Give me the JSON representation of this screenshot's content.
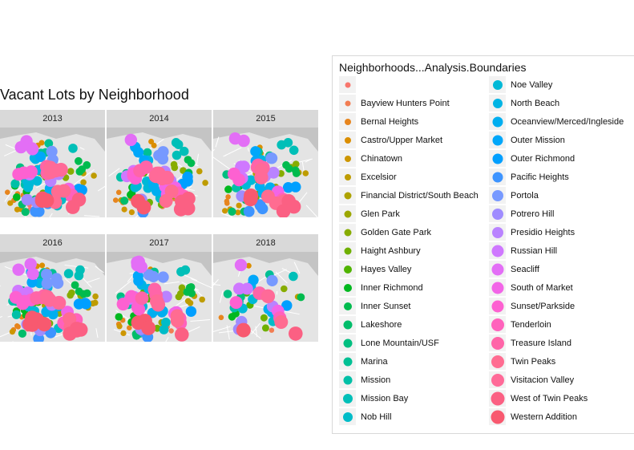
{
  "chart_data": {
    "type": "scatter",
    "title": "Vacant Lots by Neighborhood",
    "facets": [
      "2013",
      "2014",
      "2015",
      "2016",
      "2017",
      "2018"
    ],
    "legend": {
      "title": "Neighborhoods...Analysis.Boundaries",
      "placement": "right",
      "entries": [
        {
          "name": "",
          "color": "#F8766D"
        },
        {
          "name": "Bayview Hunters Point",
          "color": "#F27D52"
        },
        {
          "name": "Bernal Heights",
          "color": "#E7851E"
        },
        {
          "name": "Castro/Upper Market",
          "color": "#DB8E00"
        },
        {
          "name": "Chinatown",
          "color": "#CD9600"
        },
        {
          "name": "Excelsior",
          "color": "#BE9C00"
        },
        {
          "name": "Financial District/South Beach",
          "color": "#AEA200"
        },
        {
          "name": "Glen Park",
          "color": "#9CA700"
        },
        {
          "name": "Golden Gate Park",
          "color": "#87AC00"
        },
        {
          "name": "Haight Ashbury",
          "color": "#6FB000"
        },
        {
          "name": "Hayes Valley",
          "color": "#50B400"
        },
        {
          "name": "Inner Richmond",
          "color": "#00B81F"
        },
        {
          "name": "Inner Sunset",
          "color": "#00BB4E"
        },
        {
          "name": "Lakeshore",
          "color": "#00BD6A"
        },
        {
          "name": "Lone Mountain/USF",
          "color": "#00BF80"
        },
        {
          "name": "Marina",
          "color": "#00C094"
        },
        {
          "name": "Mission",
          "color": "#00C0A7"
        },
        {
          "name": "Mission Bay",
          "color": "#00BFB8"
        },
        {
          "name": "Nob Hill",
          "color": "#00BCC8"
        },
        {
          "name": "Noe Valley",
          "color": "#00B9D7"
        },
        {
          "name": "North Beach",
          "color": "#00B4E4"
        },
        {
          "name": "Oceanview/Merced/Ingleside",
          "color": "#00AEF0"
        },
        {
          "name": "Outer Mission",
          "color": "#00A7FA"
        },
        {
          "name": "Outer Richmond",
          "color": "#009FFF"
        },
        {
          "name": "Pacific Heights",
          "color": "#3D94FF"
        },
        {
          "name": "Portola",
          "color": "#7799FF"
        },
        {
          "name": "Potrero Hill",
          "color": "#9F8CFF"
        },
        {
          "name": "Presidio Heights",
          "color": "#B983FF"
        },
        {
          "name": "Russian Hill",
          "color": "#CF78FF"
        },
        {
          "name": "Seacliff",
          "color": "#E36EF6"
        },
        {
          "name": "South of Market",
          "color": "#F265E7"
        },
        {
          "name": "Sunset/Parkside",
          "color": "#FD61D1"
        },
        {
          "name": "Tenderloin",
          "color": "#FF62BC"
        },
        {
          "name": "Treasure Island",
          "color": "#FF65A8"
        },
        {
          "name": "Twin Peaks",
          "color": "#FF6C91"
        },
        {
          "name": "Visitacion Valley",
          "color": "#FF6A98"
        },
        {
          "name": "West of Twin Peaks",
          "color": "#FB6083"
        },
        {
          "name": "Western Addition",
          "color": "#F8596F"
        }
      ]
    }
  }
}
